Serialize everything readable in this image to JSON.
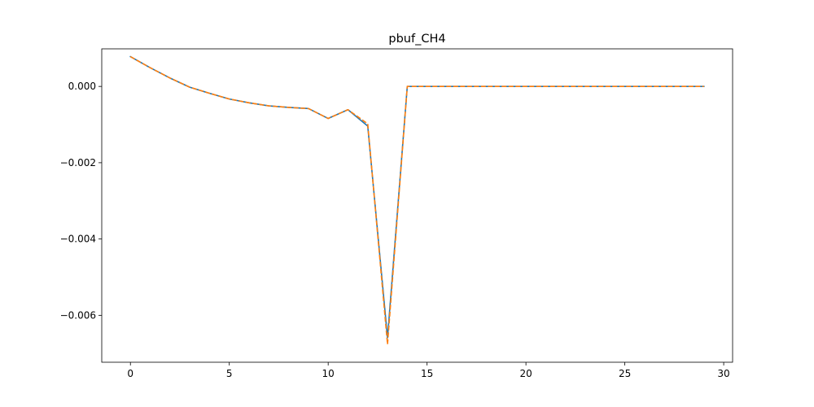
{
  "chart_data": {
    "type": "line",
    "title": "pbuf_CH4",
    "xlabel": "",
    "ylabel": "",
    "xlim": [
      -1.45,
      30.45
    ],
    "ylim": [
      -0.00723,
      0.000985
    ],
    "x_ticks": [
      0,
      5,
      10,
      15,
      20,
      25,
      30
    ],
    "x_tick_labels": [
      "0",
      "5",
      "10",
      "15",
      "20",
      "25",
      "30"
    ],
    "y_ticks": [
      0.0,
      -0.002,
      -0.004,
      -0.006
    ],
    "y_tick_labels": [
      "0.000",
      "−0.002",
      "−0.004",
      "−0.006"
    ],
    "grid": false,
    "legend": "none",
    "x": [
      0,
      1,
      2,
      3,
      4,
      5,
      6,
      7,
      8,
      9,
      10,
      11,
      12,
      13,
      14,
      15,
      16,
      17,
      18,
      19,
      20,
      21,
      22,
      23,
      24,
      25,
      26,
      27,
      28,
      29
    ],
    "series": [
      {
        "color": "#1f77b4",
        "style": "solid",
        "values": [
          0.00078,
          0.00049,
          0.00022,
          -2e-05,
          -0.00018,
          -0.00033,
          -0.00043,
          -0.00051,
          -0.00055,
          -0.00058,
          -0.00084,
          -0.00061,
          -0.00104,
          -0.00659,
          0.0,
          0.0,
          0.0,
          0.0,
          0.0,
          0.0,
          0.0,
          0.0,
          0.0,
          0.0,
          0.0,
          0.0,
          0.0,
          0.0,
          0.0,
          0.0
        ]
      },
      {
        "color": "#ff7f0e",
        "style": "dashed",
        "values": [
          0.00078,
          0.00049,
          0.00022,
          -2e-05,
          -0.00018,
          -0.00033,
          -0.00043,
          -0.00051,
          -0.00055,
          -0.00058,
          -0.00084,
          -0.00061,
          -0.00098,
          -0.00676,
          0.0,
          0.0,
          0.0,
          0.0,
          0.0,
          0.0,
          0.0,
          0.0,
          0.0,
          0.0,
          0.0,
          0.0,
          0.0,
          0.0,
          0.0,
          0.0
        ]
      }
    ]
  }
}
